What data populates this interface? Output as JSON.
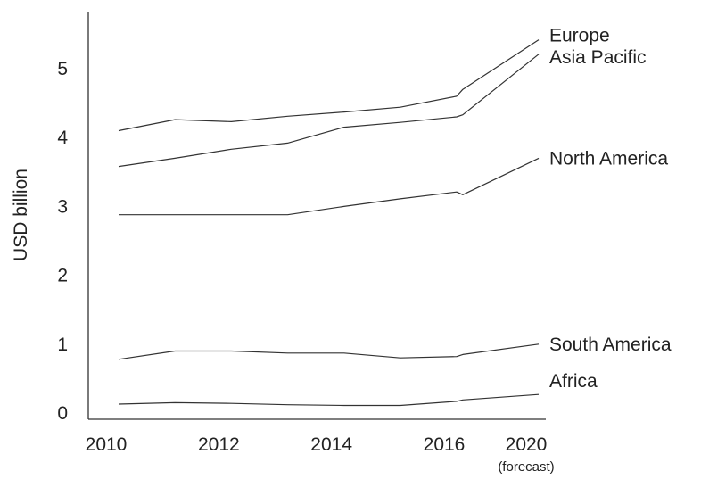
{
  "chart_data": {
    "type": "line",
    "title": "",
    "xlabel": "",
    "ylabel": "USD billion",
    "xlim": [
      2009.6,
      2018.5
    ],
    "ylim": [
      0,
      5.8
    ],
    "x_ticks": [
      {
        "label": "2010",
        "sub": ""
      },
      {
        "label": "2012",
        "sub": ""
      },
      {
        "label": "2014",
        "sub": ""
      },
      {
        "label": "2016",
        "sub": ""
      },
      {
        "label": "2020",
        "sub": "(forecast)"
      }
    ],
    "x_tick_positions": [
      2010,
      2012,
      2014,
      2016,
      2020
    ],
    "y_ticks": [
      "0",
      "1",
      "2",
      "3",
      "4",
      "5"
    ],
    "y_tick_values": [
      0,
      1,
      2,
      3,
      4,
      5
    ],
    "grid": false,
    "legend": "labels at line ends",
    "x": [
      2010,
      2011,
      2012,
      2013,
      2014,
      2015,
      2016,
      2016.3,
      2020
    ],
    "series": [
      {
        "name": "Europe",
        "values": [
          4.1,
          4.26,
          4.23,
          4.31,
          4.37,
          4.44,
          4.6,
          4.7,
          5.42
        ]
      },
      {
        "name": "Asia Pacific",
        "values": [
          3.58,
          3.7,
          3.83,
          3.92,
          4.15,
          4.22,
          4.3,
          4.33,
          5.21
        ]
      },
      {
        "name": "North America",
        "values": [
          2.88,
          2.88,
          2.88,
          2.88,
          3.0,
          3.11,
          3.21,
          3.17,
          3.7
        ]
      },
      {
        "name": "South America",
        "values": [
          0.78,
          0.9,
          0.9,
          0.87,
          0.87,
          0.8,
          0.82,
          0.85,
          1.0
        ]
      },
      {
        "name": "Africa",
        "values": [
          0.13,
          0.15,
          0.14,
          0.12,
          0.11,
          0.11,
          0.17,
          0.19,
          0.27
        ]
      }
    ]
  }
}
